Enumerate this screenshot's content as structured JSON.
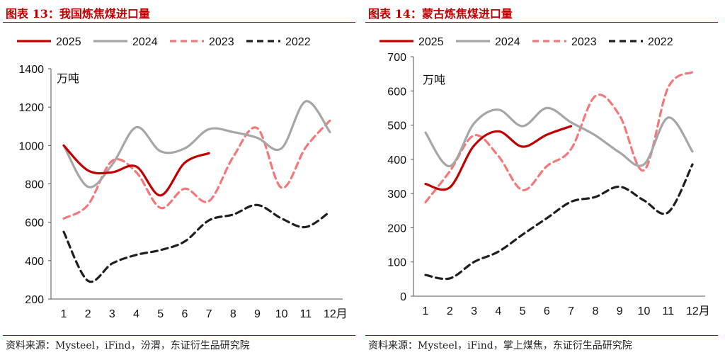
{
  "charts": [
    {
      "title": "图表 13：我国炼焦煤进口量",
      "source": "资料来源：Mysteel，iFind，汾渭，东证衍生品研究院"
    },
    {
      "title": "图表 14：蒙古炼焦煤进口量",
      "source": "资料来源：Mysteel，iFind，掌上煤焦，东证衍生品研究院"
    }
  ],
  "chart_data": [
    {
      "type": "line",
      "unit_label": "万吨",
      "x": [
        "1",
        "2",
        "3",
        "4",
        "5",
        "6",
        "7",
        "8",
        "9",
        "10",
        "11",
        "12月"
      ],
      "ylim": [
        200,
        1400
      ],
      "yticks": [
        200,
        400,
        600,
        800,
        1000,
        1200,
        1400
      ],
      "grid": false,
      "legend_position": "top",
      "series": [
        {
          "name": "2025",
          "color": "#c00000",
          "style": "solid",
          "values": [
            1000,
            870,
            860,
            890,
            740,
            910,
            960,
            null,
            null,
            null,
            null,
            null
          ]
        },
        {
          "name": "2024",
          "color": "#a6a6a6",
          "style": "solid",
          "values": [
            1000,
            785,
            900,
            1095,
            970,
            985,
            1085,
            1070,
            1040,
            985,
            1230,
            1070
          ]
        },
        {
          "name": "2023",
          "color": "#f4787a",
          "style": "dashed",
          "values": [
            620,
            690,
            920,
            860,
            675,
            775,
            710,
            940,
            1090,
            780,
            990,
            1130
          ]
        },
        {
          "name": "2022",
          "color": "#1f1f1f",
          "style": "dashed",
          "values": [
            550,
            295,
            385,
            430,
            455,
            500,
            610,
            640,
            690,
            620,
            575,
            655
          ]
        }
      ]
    },
    {
      "type": "line",
      "unit_label": "万吨",
      "x": [
        "1",
        "2",
        "3",
        "4",
        "5",
        "6",
        "7",
        "8",
        "9",
        "10",
        "11",
        "12月"
      ],
      "ylim": [
        0,
        700
      ],
      "yticks": [
        0,
        100,
        200,
        300,
        400,
        500,
        600,
        700
      ],
      "grid": false,
      "legend_position": "top",
      "series": [
        {
          "name": "2025",
          "color": "#c00000",
          "style": "solid",
          "values": [
            328,
            318,
            440,
            482,
            437,
            472,
            497,
            null,
            null,
            null,
            null,
            null
          ]
        },
        {
          "name": "2024",
          "color": "#a6a6a6",
          "style": "solid",
          "values": [
            478,
            380,
            505,
            545,
            497,
            550,
            508,
            470,
            420,
            385,
            522,
            423
          ]
        },
        {
          "name": "2023",
          "color": "#f4787a",
          "style": "dashed",
          "values": [
            275,
            365,
            470,
            410,
            310,
            380,
            430,
            585,
            528,
            368,
            610,
            655
          ]
        },
        {
          "name": "2022",
          "color": "#1f1f1f",
          "style": "dashed",
          "values": [
            62,
            52,
            100,
            130,
            180,
            228,
            276,
            290,
            320,
            280,
            245,
            385
          ]
        }
      ]
    }
  ]
}
